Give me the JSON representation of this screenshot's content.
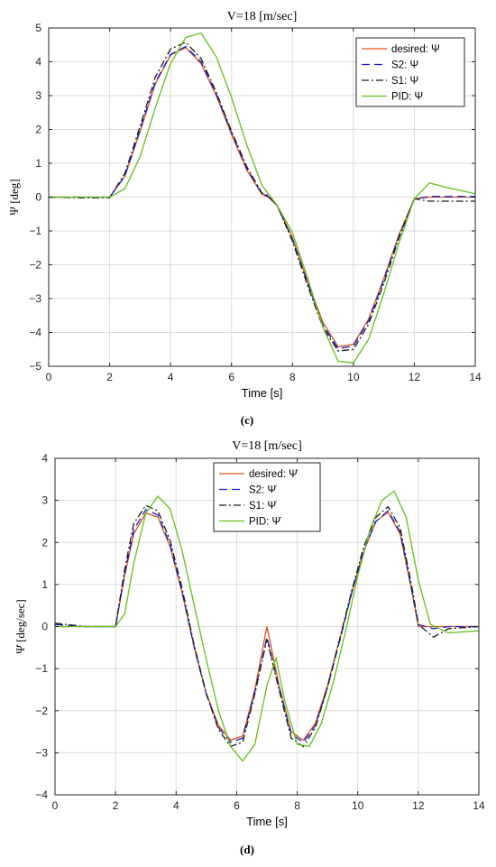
{
  "figure": {
    "caption_c": "(c)",
    "caption_d": "(d)"
  },
  "chart_data": [
    {
      "type": "line",
      "title": "V=18 [m/sec]",
      "xlabel": "Time [s]",
      "ylabel": "Ψ [deg]",
      "xlim": [
        0,
        14
      ],
      "ylim": [
        -5,
        5
      ],
      "xticks": [
        0,
        2,
        4,
        6,
        8,
        10,
        12,
        14
      ],
      "yticks": [
        -5,
        -4,
        -3,
        -2,
        -1,
        0,
        1,
        2,
        3,
        4,
        5
      ],
      "grid": true,
      "legend_position": "top-right",
      "series": [
        {
          "name": "desired: Ψ",
          "color": "#d9541a",
          "style": "solid",
          "x": [
            0,
            1,
            2,
            2.5,
            3,
            3.5,
            4,
            4.5,
            5,
            5.5,
            6,
            6.5,
            7,
            7.2,
            7.5,
            8,
            8.5,
            9,
            9.5,
            10,
            10.5,
            11,
            11.5,
            12,
            12.5,
            13,
            14
          ],
          "y": [
            0,
            0,
            0,
            0.62,
            1.95,
            3.35,
            4.2,
            4.42,
            3.95,
            3.0,
            1.85,
            0.8,
            0.08,
            0,
            -0.25,
            -1.2,
            -2.5,
            -3.7,
            -4.42,
            -4.35,
            -3.6,
            -2.4,
            -1.1,
            -0.05,
            0,
            0,
            0
          ]
        },
        {
          "name": "S2: Ψ",
          "color": "#1f1fd0",
          "style": "dashed",
          "x": [
            0,
            1,
            2,
            2.5,
            3,
            3.5,
            4,
            4.5,
            5,
            5.5,
            6,
            6.5,
            7,
            7.2,
            7.5,
            8,
            8.5,
            9,
            9.5,
            10,
            10.5,
            11,
            11.5,
            12,
            12.5,
            13,
            14
          ],
          "y": [
            0,
            0,
            0,
            0.62,
            2.0,
            3.4,
            4.22,
            4.45,
            4.0,
            3.05,
            1.9,
            0.85,
            0.1,
            0.02,
            -0.25,
            -1.25,
            -2.55,
            -3.78,
            -4.48,
            -4.4,
            -3.65,
            -2.45,
            -1.15,
            -0.05,
            0.02,
            0.02,
            0.02
          ]
        },
        {
          "name": "S1: Ψ",
          "color": "#1a1a1a",
          "style": "dashdot",
          "x": [
            0,
            1,
            2,
            2.5,
            3,
            3.5,
            4,
            4.5,
            5,
            5.5,
            6,
            6.5,
            7,
            7.2,
            7.5,
            8,
            8.5,
            9,
            9.5,
            10,
            10.5,
            11,
            11.5,
            12,
            12.5,
            13,
            14
          ],
          "y": [
            0,
            -0.02,
            -0.02,
            0.7,
            2.1,
            3.55,
            4.38,
            4.58,
            4.1,
            3.1,
            1.95,
            0.9,
            0.12,
            0.05,
            -0.25,
            -1.3,
            -2.62,
            -3.85,
            -4.55,
            -4.5,
            -3.75,
            -2.55,
            -1.2,
            -0.05,
            -0.12,
            -0.12,
            -0.12
          ]
        },
        {
          "name": "PID: Ψ",
          "color": "#5fc219",
          "style": "solid",
          "x": [
            0,
            1,
            2,
            2.5,
            3,
            3.5,
            4,
            4.5,
            5,
            5.5,
            6,
            6.5,
            7,
            7.5,
            8,
            8.5,
            9,
            9.5,
            10,
            10.5,
            11,
            11.5,
            12,
            12.5,
            13,
            14
          ],
          "y": [
            0,
            0,
            0,
            0.25,
            1.2,
            2.65,
            3.95,
            4.72,
            4.85,
            4.15,
            2.95,
            1.55,
            0.35,
            -0.25,
            -1.05,
            -2.4,
            -3.85,
            -4.85,
            -4.9,
            -4.2,
            -2.85,
            -1.35,
            -0.05,
            0.42,
            0.3,
            0.1
          ]
        }
      ]
    },
    {
      "type": "line",
      "title": "V=18 [m/sec]",
      "xlabel": "Time [s]",
      "ylabel": "Ψ̇ [deg/sec]",
      "xlim": [
        0,
        14
      ],
      "ylim": [
        -4,
        4
      ],
      "xticks": [
        0,
        2,
        4,
        6,
        8,
        10,
        12,
        14
      ],
      "yticks": [
        -4,
        -3,
        -2,
        -1,
        0,
        1,
        2,
        3,
        4
      ],
      "grid": true,
      "legend_position": "top-center",
      "series": [
        {
          "name": "desired: Ψ̇",
          "color": "#d9541a",
          "style": "solid",
          "x": [
            0,
            1,
            2,
            2.3,
            2.6,
            3,
            3.4,
            3.8,
            4.2,
            4.6,
            5,
            5.4,
            5.8,
            6.2,
            6.6,
            7,
            7.4,
            7.8,
            8.2,
            8.6,
            9,
            9.4,
            9.8,
            10.2,
            10.6,
            11,
            11.4,
            11.8,
            12,
            12.5,
            13,
            14
          ],
          "y": [
            0,
            0,
            0,
            1.2,
            2.2,
            2.7,
            2.6,
            1.9,
            0.8,
            -0.5,
            -1.6,
            -2.35,
            -2.7,
            -2.6,
            -1.5,
            0,
            -1.4,
            -2.5,
            -2.7,
            -2.3,
            -1.4,
            -0.3,
            0.8,
            1.8,
            2.5,
            2.72,
            2.2,
            0.8,
            0,
            0,
            0,
            0
          ]
        },
        {
          "name": "S2: Ψ̇",
          "color": "#1f1fd0",
          "style": "dashed",
          "x": [
            0,
            1,
            2,
            2.3,
            2.6,
            3,
            3.4,
            3.8,
            4.2,
            4.6,
            5,
            5.4,
            5.8,
            6.2,
            6.6,
            7,
            7.4,
            7.8,
            8.2,
            8.6,
            9,
            9.4,
            9.8,
            10.2,
            10.6,
            11,
            11.4,
            11.8,
            12,
            12.5,
            13,
            14
          ],
          "y": [
            0.05,
            0,
            0,
            1.25,
            2.3,
            2.78,
            2.65,
            1.95,
            0.82,
            -0.5,
            -1.62,
            -2.4,
            -2.75,
            -2.65,
            -1.55,
            -0.25,
            -1.45,
            -2.55,
            -2.75,
            -2.35,
            -1.45,
            -0.35,
            0.8,
            1.8,
            2.5,
            2.75,
            2.25,
            0.8,
            0.05,
            -0.05,
            0,
            0
          ]
        },
        {
          "name": "S1: Ψ̇",
          "color": "#1a1a1a",
          "style": "dashdot",
          "x": [
            0,
            1,
            2,
            2.3,
            2.6,
            3,
            3.4,
            3.8,
            4.2,
            4.6,
            5,
            5.4,
            5.8,
            6.2,
            6.6,
            7,
            7.4,
            7.8,
            8.2,
            8.6,
            9,
            9.4,
            9.8,
            10.2,
            10.6,
            11,
            11.4,
            11.8,
            12,
            12.5,
            13,
            14
          ],
          "y": [
            0.08,
            0,
            0,
            1.35,
            2.45,
            2.88,
            2.75,
            2.05,
            0.9,
            -0.45,
            -1.6,
            -2.45,
            -2.85,
            -2.75,
            -1.6,
            -0.3,
            -1.5,
            -2.65,
            -2.85,
            -2.4,
            -1.45,
            -0.3,
            0.85,
            1.9,
            2.6,
            2.85,
            2.35,
            0.9,
            0.05,
            -0.25,
            -0.05,
            0
          ]
        },
        {
          "name": "PID: Ψ̇",
          "color": "#5fc219",
          "style": "solid",
          "x": [
            0,
            1,
            2,
            2.3,
            2.6,
            3,
            3.4,
            3.8,
            4.2,
            4.6,
            5,
            5.4,
            5.8,
            6.2,
            6.6,
            7,
            7.3,
            7.6,
            8,
            8.4,
            8.8,
            9.2,
            9.6,
            10,
            10.4,
            10.8,
            11.2,
            11.6,
            12,
            12.4,
            13,
            14
          ],
          "y": [
            0,
            0,
            0,
            0.3,
            1.5,
            2.7,
            3.1,
            2.8,
            1.8,
            0.5,
            -0.8,
            -2.0,
            -2.85,
            -3.2,
            -2.8,
            -1.4,
            -0.75,
            -1.8,
            -2.8,
            -2.85,
            -2.3,
            -1.3,
            -0.1,
            1.2,
            2.3,
            3.0,
            3.22,
            2.6,
            1.1,
            0.05,
            -0.15,
            -0.1
          ]
        }
      ]
    }
  ]
}
